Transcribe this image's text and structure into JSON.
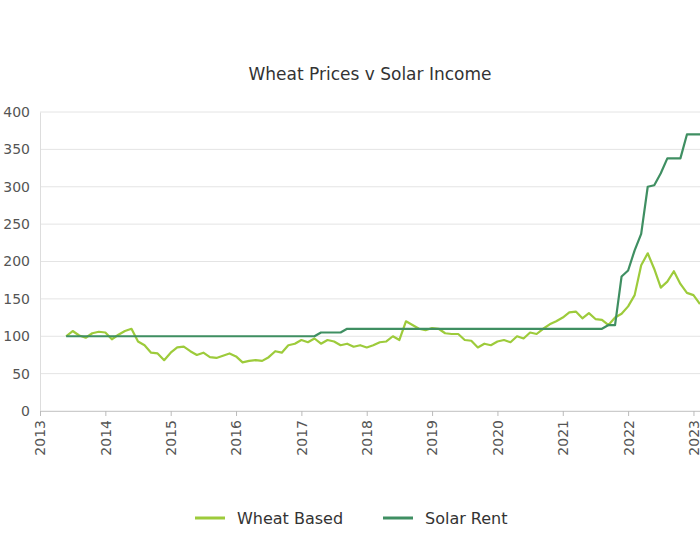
{
  "chart_data": {
    "type": "line",
    "title": "Wheat Prices v Solar Income",
    "x": [
      2013.4,
      2013.5,
      2013.6,
      2013.7,
      2013.8,
      2013.9,
      2014.0,
      2014.1,
      2014.2,
      2014.3,
      2014.4,
      2014.5,
      2014.6,
      2014.7,
      2014.8,
      2014.9,
      2015.0,
      2015.1,
      2015.2,
      2015.3,
      2015.4,
      2015.5,
      2015.6,
      2015.7,
      2015.8,
      2015.9,
      2016.0,
      2016.1,
      2016.2,
      2016.3,
      2016.4,
      2016.5,
      2016.6,
      2016.7,
      2016.8,
      2016.9,
      2017.0,
      2017.1,
      2017.2,
      2017.3,
      2017.4,
      2017.5,
      2017.6,
      2017.7,
      2017.8,
      2017.9,
      2018.0,
      2018.1,
      2018.2,
      2018.3,
      2018.4,
      2018.5,
      2018.6,
      2018.7,
      2018.8,
      2018.9,
      2019.0,
      2019.1,
      2019.2,
      2019.3,
      2019.4,
      2019.5,
      2019.6,
      2019.7,
      2019.8,
      2019.9,
      2020.0,
      2020.1,
      2020.2,
      2020.3,
      2020.4,
      2020.5,
      2020.6,
      2020.7,
      2020.8,
      2020.9,
      2021.0,
      2021.1,
      2021.2,
      2021.3,
      2021.4,
      2021.5,
      2021.6,
      2021.7,
      2021.8,
      2021.9,
      2022.0,
      2022.1,
      2022.2,
      2022.3,
      2022.4,
      2022.5,
      2022.6,
      2022.7,
      2022.8,
      2022.9,
      2023.0,
      2023.1
    ],
    "series": [
      {
        "name": "Wheat Based",
        "color": "#9dcb3b",
        "values": [
          100,
          107,
          101,
          98,
          104,
          106,
          105,
          96,
          102,
          107,
          110,
          93,
          88,
          78,
          77,
          68,
          78,
          85,
          86,
          80,
          75,
          78,
          72,
          71,
          74,
          77,
          73,
          65,
          67,
          68,
          67,
          72,
          80,
          78,
          88,
          90,
          95,
          92,
          97,
          90,
          95,
          93,
          88,
          90,
          86,
          88,
          85,
          88,
          92,
          93,
          100,
          95,
          120,
          115,
          110,
          108,
          111,
          110,
          104,
          103,
          103,
          95,
          94,
          85,
          90,
          88,
          93,
          95,
          92,
          100,
          97,
          105,
          103,
          110,
          116,
          120,
          125,
          132,
          133,
          124,
          131,
          123,
          122,
          115,
          125,
          130,
          140,
          155,
          195,
          211,
          190,
          165,
          173,
          187,
          170,
          158,
          155,
          143
        ]
      },
      {
        "name": "Solar Rent",
        "color": "#3f8f62",
        "values": [
          100,
          100,
          100,
          100,
          100,
          100,
          100,
          100,
          100,
          100,
          100,
          100,
          100,
          100,
          100,
          100,
          100,
          100,
          100,
          100,
          100,
          100,
          100,
          100,
          100,
          100,
          100,
          100,
          100,
          100,
          100,
          100,
          100,
          100,
          100,
          100,
          100,
          100,
          100,
          105,
          105,
          105,
          105,
          110,
          110,
          110,
          110,
          110,
          110,
          110,
          110,
          110,
          110,
          110,
          110,
          110,
          110,
          110,
          110,
          110,
          110,
          110,
          110,
          110,
          110,
          110,
          110,
          110,
          110,
          110,
          110,
          110,
          110,
          110,
          110,
          110,
          110,
          110,
          110,
          110,
          110,
          110,
          110,
          115,
          115,
          180,
          188,
          215,
          237,
          300,
          302,
          318,
          338,
          338,
          338,
          370,
          370,
          370
        ]
      }
    ],
    "xlim": [
      2013,
      2023.1
    ],
    "xticks": [
      2013,
      2014,
      2015,
      2016,
      2017,
      2018,
      2019,
      2020,
      2021,
      2022,
      2023
    ],
    "ylim": [
      0,
      400
    ],
    "yticks": [
      0,
      50,
      100,
      150,
      200,
      250,
      300,
      350,
      400
    ],
    "grid": true,
    "legend": "bottom"
  }
}
